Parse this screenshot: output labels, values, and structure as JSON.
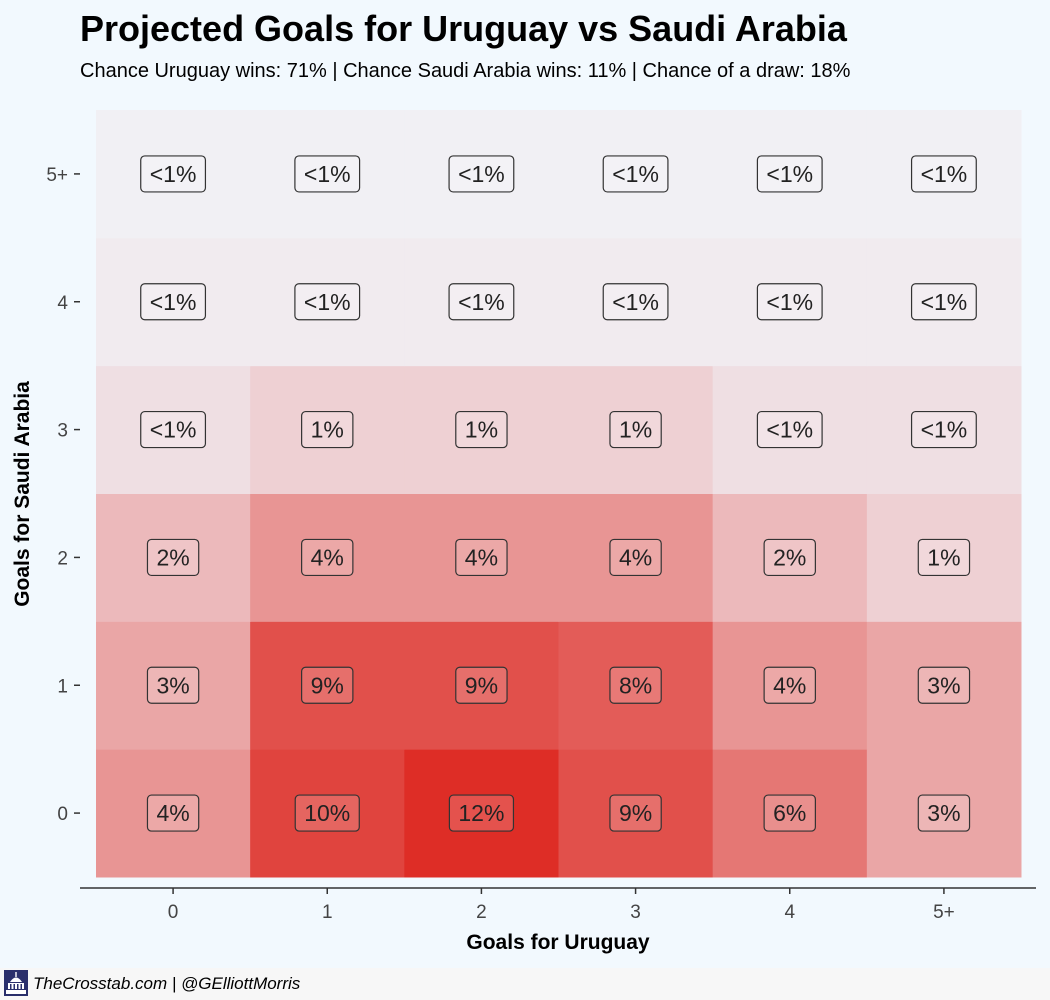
{
  "chart_data": {
    "type": "heatmap",
    "title": "Projected Goals for Uruguay vs Saudi Arabia",
    "subtitle": "Chance Uruguay wins: 71% | Chance Saudi Arabia wins: 11% | Chance of a draw: 18%",
    "xlabel": "Goals for Uruguay",
    "ylabel": "Goals for Saudi Arabia",
    "x_categories": [
      "0",
      "1",
      "2",
      "3",
      "4",
      "5+"
    ],
    "y_categories": [
      "0",
      "1",
      "2",
      "3",
      "4",
      "5+"
    ],
    "grid": false,
    "legend": "none",
    "cells": [
      [
        "4%",
        "10%",
        "12%",
        "9%",
        "6%",
        "3%"
      ],
      [
        "3%",
        "9%",
        "9%",
        "8%",
        "4%",
        "3%"
      ],
      [
        "2%",
        "4%",
        "4%",
        "4%",
        "2%",
        "1%"
      ],
      [
        "<1%",
        "1%",
        "1%",
        "1%",
        "<1%",
        "<1%"
      ],
      [
        "<1%",
        "<1%",
        "<1%",
        "<1%",
        "<1%",
        "<1%"
      ],
      [
        "<1%",
        "<1%",
        "<1%",
        "<1%",
        "<1%",
        "<1%"
      ]
    ],
    "values": [
      [
        4,
        10,
        12,
        9,
        6,
        3
      ],
      [
        3,
        9,
        9,
        8,
        4,
        3
      ],
      [
        2,
        4,
        4,
        4,
        2,
        1
      ],
      [
        0.5,
        1,
        1,
        1,
        0.5,
        0.5
      ],
      [
        0.2,
        0.2,
        0.2,
        0.2,
        0.2,
        0.2
      ],
      [
        0.1,
        0.1,
        0.1,
        0.1,
        0.1,
        0.1
      ]
    ],
    "color_scale": {
      "low": "#f2f9fe",
      "high": "#de2d26"
    }
  },
  "footer": {
    "text": "TheCrosstab.com | @GElliottMorris",
    "logo_icon": "capitol-dome-icon"
  }
}
